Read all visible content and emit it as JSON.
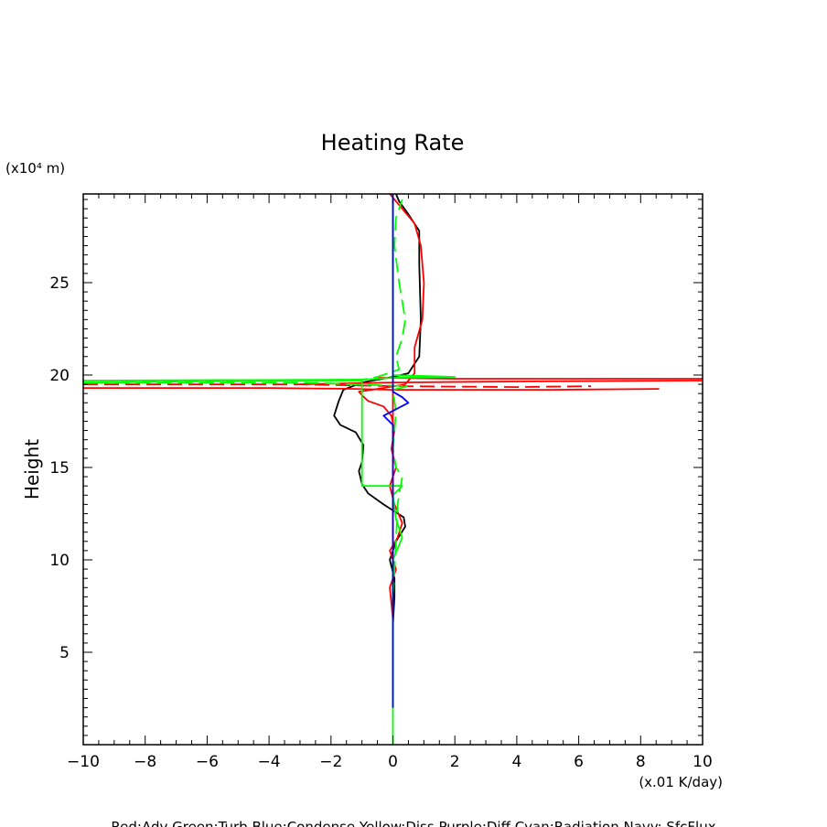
{
  "chart_data": {
    "type": "line",
    "title": "Heating Rate",
    "xlabel": "(x.01 K/day)",
    "ylabel": "Height",
    "yunit_label": "(x10⁴ m)",
    "xlim": [
      -10,
      10
    ],
    "ylim": [
      0,
      29.8
    ],
    "x_ticks": [
      -10,
      -8,
      -6,
      -4,
      -2,
      0,
      2,
      4,
      6,
      8,
      10
    ],
    "x_tick_labels": [
      "−10",
      "−8",
      "−6",
      "−4",
      "−2",
      "0",
      "2",
      "4",
      "6",
      "8",
      "10"
    ],
    "y_ticks": [
      5,
      10,
      15,
      20,
      25
    ],
    "y_tick_labels": [
      "5",
      "10",
      "15",
      "20",
      "25"
    ],
    "legend_text": "Red:Adv  Green:Turb  Blue:Condense  Yellow:Diss  Purple:Diff  Cyan:Radiation  Navy: SfcFlux",
    "series": [
      {
        "name": "Black",
        "color": "#000000",
        "dash": "solid",
        "points": [
          [
            0,
            6.5
          ],
          [
            0.05,
            8
          ],
          [
            0.05,
            9
          ],
          [
            -0.1,
            10
          ],
          [
            0.1,
            11
          ],
          [
            0.4,
            11.8
          ],
          [
            0.35,
            12.3
          ],
          [
            -0.3,
            13
          ],
          [
            -0.8,
            13.6
          ],
          [
            -1.0,
            14.1
          ],
          [
            -1.1,
            14.8
          ],
          [
            -1.0,
            15.3
          ],
          [
            -0.95,
            16.2
          ],
          [
            -1.2,
            16.9
          ],
          [
            -1.7,
            17.3
          ],
          [
            -1.9,
            17.8
          ],
          [
            -1.75,
            18.6
          ],
          [
            -1.6,
            19.2
          ],
          [
            -1.0,
            19.6
          ],
          [
            0,
            19.9
          ],
          [
            0.5,
            20.1
          ],
          [
            0.85,
            21
          ],
          [
            0.9,
            23
          ],
          [
            0.85,
            26
          ],
          [
            0.85,
            27.8
          ],
          [
            0.5,
            28.7
          ],
          [
            0.2,
            29.4
          ],
          [
            0.1,
            29.8
          ]
        ]
      },
      {
        "name": "Red solid (vertical)",
        "color": "#ff0000",
        "dash": "solid",
        "points": [
          [
            0,
            6.3
          ],
          [
            0,
            29.8
          ]
        ]
      },
      {
        "name": "Red solid (wiggle)",
        "color": "#ff0000",
        "dash": "solid",
        "points": [
          [
            0,
            6.8
          ],
          [
            -0.1,
            8.5
          ],
          [
            0.1,
            9.5
          ],
          [
            -0.1,
            10.5
          ],
          [
            0.15,
            11.2
          ],
          [
            0.3,
            12
          ],
          [
            0.05,
            13
          ],
          [
            -0.1,
            14
          ],
          [
            0.1,
            15
          ],
          [
            -0.05,
            16
          ],
          [
            0.05,
            17
          ],
          [
            -0.05,
            17.8
          ],
          [
            -0.3,
            18.3
          ],
          [
            -0.8,
            18.6
          ],
          [
            -1.0,
            18.9
          ],
          [
            -1.1,
            19.1
          ],
          [
            -0.3,
            19.3
          ],
          [
            0.4,
            19.5
          ],
          [
            0.7,
            20.1
          ],
          [
            0.7,
            21.5
          ],
          [
            0.95,
            23
          ],
          [
            1.0,
            25
          ],
          [
            0.9,
            27
          ],
          [
            0.7,
            28.2
          ],
          [
            0.3,
            29
          ],
          [
            -0.1,
            29.8
          ]
        ]
      },
      {
        "name": "Red solid (spike A)",
        "color": "#ff0000",
        "dash": "solid",
        "points": [
          [
            -10,
            19.3
          ],
          [
            -4,
            19.3
          ],
          [
            -1.2,
            19.25
          ],
          [
            0,
            19.2
          ],
          [
            5,
            19.2
          ],
          [
            8.6,
            19.25
          ]
        ]
      },
      {
        "name": "Red solid (spike B)",
        "color": "#ff0000",
        "dash": "solid",
        "points": [
          [
            -3,
            19.5
          ],
          [
            0,
            19.6
          ],
          [
            4,
            19.65
          ],
          [
            10,
            19.7
          ]
        ]
      },
      {
        "name": "Red solid (spike C)",
        "color": "#ff0000",
        "dash": "solid",
        "points": [
          [
            -0.5,
            19.85
          ],
          [
            2,
            19.8
          ],
          [
            8,
            19.8
          ],
          [
            10,
            19.8
          ]
        ]
      },
      {
        "name": "Red dashed (spike)",
        "color": "#ff0000",
        "dash": "dashed",
        "points": [
          [
            -10,
            19.5
          ],
          [
            -3,
            19.5
          ],
          [
            0,
            19.4
          ],
          [
            4,
            19.35
          ],
          [
            6.4,
            19.4
          ]
        ]
      },
      {
        "name": "Green solid",
        "color": "#00ff00",
        "dash": "solid",
        "points": [
          [
            0,
            0
          ],
          [
            0,
            10
          ],
          [
            0.3,
            11.2
          ],
          [
            0.1,
            12.2
          ],
          [
            0,
            13.5
          ],
          [
            0.3,
            14
          ],
          [
            -0.1,
            14
          ],
          [
            -1.0,
            14
          ],
          [
            -1.0,
            19.7
          ],
          [
            -10,
            19.7
          ],
          [
            -1,
            19.75
          ],
          [
            0,
            19.85
          ],
          [
            2,
            19.9
          ],
          [
            0,
            20
          ],
          [
            0,
            29.8
          ]
        ]
      },
      {
        "name": "Green dashed",
        "color": "#00ff00",
        "dash": "dashed",
        "points": [
          [
            0,
            8
          ],
          [
            0.1,
            11
          ],
          [
            0.15,
            13
          ],
          [
            0.3,
            14.5
          ],
          [
            0.1,
            15
          ],
          [
            0,
            16
          ],
          [
            0.1,
            18
          ],
          [
            0,
            19.2
          ],
          [
            0.5,
            19.4
          ],
          [
            -3,
            19.6
          ],
          [
            -10,
            19.6
          ],
          [
            -1,
            19.75
          ],
          [
            -0.5,
            19.9
          ],
          [
            0.2,
            20.3
          ],
          [
            0.1,
            21
          ],
          [
            0.3,
            22
          ],
          [
            0.4,
            23
          ],
          [
            0.2,
            25
          ],
          [
            0.05,
            27
          ],
          [
            0.1,
            28.5
          ],
          [
            0.3,
            29.5
          ]
        ]
      },
      {
        "name": "Blue",
        "color": "#0000ff",
        "dash": "solid",
        "points": [
          [
            0,
            2
          ],
          [
            0,
            10
          ],
          [
            0,
            17.3
          ],
          [
            -0.3,
            17.8
          ],
          [
            0.5,
            18.5
          ],
          [
            0.3,
            18.8
          ],
          [
            0,
            19.1
          ],
          [
            0,
            29.8
          ]
        ]
      }
    ]
  }
}
